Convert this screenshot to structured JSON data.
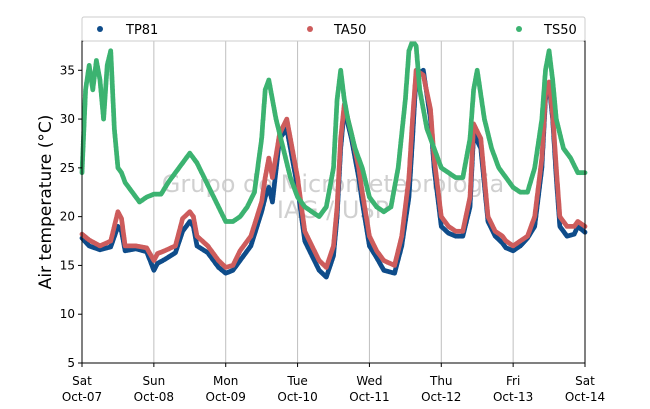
{
  "chart_data": {
    "type": "scatter",
    "ylabel": "Air temperature (°C)",
    "ylim": [
      5,
      38
    ],
    "yticks": [
      5,
      10,
      15,
      20,
      25,
      30,
      35
    ],
    "x_range_days": [
      0,
      7
    ],
    "xticks": [
      {
        "day": 0,
        "line1": "Sat",
        "line2": "Oct-07"
      },
      {
        "day": 1,
        "line1": "Sun",
        "line2": "Oct-08"
      },
      {
        "day": 2,
        "line1": "Mon",
        "line2": "Oct-09"
      },
      {
        "day": 3,
        "line1": "Tue",
        "line2": "Oct-10"
      },
      {
        "day": 4,
        "line1": "Wed",
        "line2": "Oct-11"
      },
      {
        "day": 5,
        "line1": "Thu",
        "line2": "Oct-12"
      },
      {
        "day": 6,
        "line1": "Fri",
        "line2": "Oct-13"
      },
      {
        "day": 7,
        "line1": "Sat",
        "line2": "Oct-14"
      }
    ],
    "grid": "vertical",
    "legend_position": "top",
    "watermark": {
      "line1": "Grupo de Micrometeorologia",
      "line2": "IAG / USP"
    },
    "series": [
      {
        "name": "TP81",
        "color": "#0f4c8a",
        "x": [
          0.0,
          0.1,
          0.25,
          0.4,
          0.5,
          0.55,
          0.6,
          0.75,
          0.9,
          1.0,
          1.05,
          1.15,
          1.3,
          1.4,
          1.5,
          1.55,
          1.6,
          1.75,
          1.9,
          2.0,
          2.1,
          2.2,
          2.35,
          2.5,
          2.55,
          2.6,
          2.65,
          2.75,
          2.85,
          2.9,
          3.0,
          3.1,
          3.2,
          3.3,
          3.4,
          3.5,
          3.55,
          3.6,
          3.65,
          3.75,
          3.85,
          3.9,
          4.0,
          4.1,
          4.2,
          4.35,
          4.45,
          4.55,
          4.6,
          4.65,
          4.75,
          4.85,
          4.9,
          5.0,
          5.1,
          5.2,
          5.3,
          5.4,
          5.45,
          5.55,
          5.65,
          5.75,
          5.85,
          5.9,
          6.0,
          6.1,
          6.2,
          6.3,
          6.4,
          6.45,
          6.5,
          6.55,
          6.6,
          6.65,
          6.75,
          6.85,
          6.9,
          7.0
        ],
        "y": [
          17.8,
          17.0,
          16.6,
          16.9,
          19.0,
          18.5,
          16.5,
          16.7,
          16.4,
          14.5,
          15.2,
          15.6,
          16.3,
          18.5,
          19.5,
          19.0,
          17.0,
          16.3,
          14.8,
          14.2,
          14.5,
          15.5,
          17.0,
          20.5,
          22.0,
          23.0,
          21.5,
          28.0,
          29.0,
          27.0,
          23.0,
          17.5,
          16.0,
          14.5,
          13.8,
          16.0,
          20.0,
          27.0,
          31.0,
          28.0,
          24.0,
          21.5,
          17.0,
          15.8,
          14.5,
          14.2,
          17.0,
          22.0,
          28.0,
          34.5,
          35.0,
          30.0,
          25.0,
          19.0,
          18.3,
          18.0,
          18.0,
          21.0,
          28.5,
          27.0,
          19.5,
          18.0,
          17.3,
          16.8,
          16.5,
          17.0,
          17.8,
          19.0,
          25.0,
          32.0,
          33.5,
          30.0,
          24.0,
          19.0,
          18.0,
          18.2,
          19.0,
          18.4
        ]
      },
      {
        "name": "TA50",
        "color": "#cd5c5c",
        "x": [
          0.0,
          0.1,
          0.25,
          0.4,
          0.5,
          0.55,
          0.6,
          0.75,
          0.9,
          1.0,
          1.05,
          1.15,
          1.3,
          1.4,
          1.5,
          1.55,
          1.6,
          1.75,
          1.9,
          2.0,
          2.1,
          2.2,
          2.35,
          2.5,
          2.55,
          2.6,
          2.65,
          2.75,
          2.85,
          2.9,
          3.0,
          3.1,
          3.2,
          3.3,
          3.4,
          3.5,
          3.55,
          3.6,
          3.65,
          3.75,
          3.85,
          3.9,
          4.0,
          4.1,
          4.2,
          4.35,
          4.45,
          4.55,
          4.6,
          4.65,
          4.75,
          4.85,
          4.9,
          5.0,
          5.1,
          5.2,
          5.3,
          5.4,
          5.45,
          5.55,
          5.65,
          5.75,
          5.85,
          5.9,
          6.0,
          6.1,
          6.2,
          6.3,
          6.4,
          6.45,
          6.5,
          6.55,
          6.6,
          6.65,
          6.75,
          6.85,
          6.9,
          7.0
        ],
        "y": [
          18.2,
          17.6,
          17.0,
          17.5,
          20.5,
          19.8,
          17.0,
          17.0,
          16.8,
          15.5,
          16.2,
          16.5,
          17.0,
          19.8,
          20.5,
          20.0,
          18.0,
          17.0,
          15.5,
          14.8,
          15.0,
          16.5,
          18.0,
          21.5,
          24.0,
          26.0,
          24.0,
          28.5,
          30.0,
          28.0,
          24.0,
          18.5,
          17.0,
          15.5,
          14.8,
          17.0,
          21.0,
          28.0,
          31.5,
          28.5,
          25.0,
          22.5,
          18.0,
          16.5,
          15.5,
          15.0,
          18.0,
          24.0,
          30.0,
          35.0,
          34.5,
          31.0,
          26.0,
          20.0,
          19.0,
          18.5,
          18.5,
          22.0,
          29.5,
          28.0,
          20.0,
          18.5,
          18.0,
          17.5,
          17.0,
          17.5,
          18.0,
          20.0,
          26.0,
          32.5,
          33.8,
          30.5,
          25.0,
          20.0,
          19.0,
          19.0,
          19.5,
          19.0
        ]
      },
      {
        "name": "TS50",
        "color": "#3cb371",
        "x": [
          0.0,
          0.05,
          0.1,
          0.15,
          0.2,
          0.25,
          0.3,
          0.35,
          0.4,
          0.45,
          0.5,
          0.55,
          0.6,
          0.7,
          0.8,
          0.9,
          1.0,
          1.1,
          1.2,
          1.3,
          1.4,
          1.5,
          1.55,
          1.6,
          1.7,
          1.8,
          1.9,
          2.0,
          2.1,
          2.2,
          2.3,
          2.4,
          2.5,
          2.55,
          2.6,
          2.65,
          2.7,
          2.8,
          2.9,
          3.0,
          3.1,
          3.2,
          3.3,
          3.4,
          3.5,
          3.55,
          3.6,
          3.65,
          3.7,
          3.8,
          3.9,
          4.0,
          4.1,
          4.2,
          4.3,
          4.4,
          4.5,
          4.55,
          4.6,
          4.65,
          4.7,
          4.8,
          4.9,
          5.0,
          5.1,
          5.2,
          5.3,
          5.4,
          5.45,
          5.5,
          5.6,
          5.7,
          5.8,
          5.9,
          6.0,
          6.1,
          6.2,
          6.3,
          6.4,
          6.45,
          6.5,
          6.55,
          6.6,
          6.7,
          6.8,
          6.9,
          7.0
        ],
        "y": [
          24.5,
          33.0,
          35.5,
          33.0,
          36.0,
          34.0,
          30.0,
          35.5,
          37.0,
          29.0,
          25.0,
          24.5,
          23.5,
          22.5,
          21.5,
          22.0,
          22.3,
          22.3,
          23.5,
          24.5,
          25.5,
          26.5,
          26.0,
          25.5,
          24.0,
          22.5,
          21.0,
          19.5,
          19.5,
          20.0,
          21.0,
          22.5,
          28.0,
          33.0,
          34.0,
          32.0,
          30.0,
          27.0,
          24.0,
          22.0,
          21.0,
          20.5,
          20.0,
          21.0,
          25.0,
          32.0,
          35.0,
          32.0,
          30.0,
          27.0,
          25.0,
          22.0,
          21.0,
          20.5,
          21.0,
          25.0,
          32.0,
          37.0,
          38.0,
          37.5,
          33.0,
          29.0,
          27.0,
          25.0,
          24.5,
          24.0,
          24.0,
          28.0,
          33.0,
          35.0,
          30.0,
          27.0,
          25.0,
          24.0,
          23.0,
          22.5,
          22.5,
          25.0,
          30.0,
          35.0,
          37.0,
          34.0,
          30.0,
          27.0,
          26.0,
          24.5,
          24.5
        ]
      }
    ]
  }
}
